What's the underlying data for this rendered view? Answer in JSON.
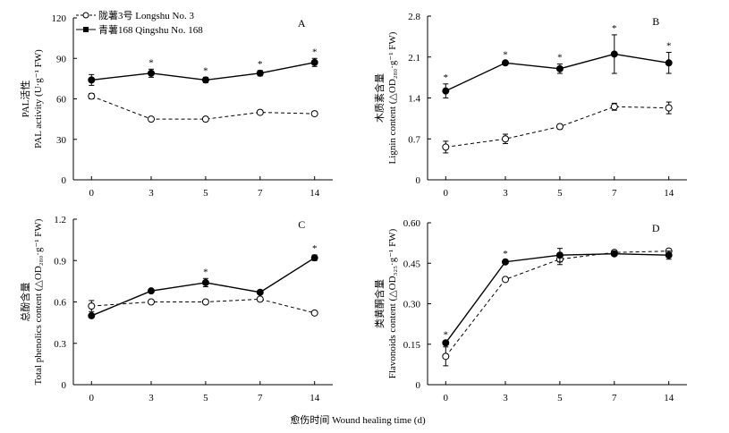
{
  "figure": {
    "x_axis_title": "愈伤时间 Wound healing time (d)",
    "legend": [
      {
        "label": "陇薯3号 Longshu No. 3",
        "style": "dashed-open"
      },
      {
        "label": "青薯168 Qingshu No. 168",
        "style": "solid-filled"
      }
    ]
  },
  "chart_data": [
    {
      "type": "line",
      "panel": "A",
      "categories": [
        "0",
        "3",
        "5",
        "7",
        "14"
      ],
      "ylabel_zh": "PAL活性",
      "ylabel_en": "PAL activity (U·g⁻¹ FW)",
      "ylim": [
        0,
        120
      ],
      "yticks": [
        "0",
        "30",
        "60",
        "90",
        "120"
      ],
      "series": [
        {
          "name": "陇薯3号 Longshu No. 3",
          "values": [
            62,
            45,
            45,
            50,
            49
          ],
          "errors": [
            2,
            1.5,
            1.5,
            1.5,
            1.5
          ]
        },
        {
          "name": "青薯168 Qingshu No. 168",
          "values": [
            74,
            79,
            74,
            79,
            87
          ],
          "errors": [
            4,
            3,
            2,
            2,
            3
          ]
        }
      ],
      "significance": [
        "",
        "*",
        "*",
        "*",
        "*"
      ]
    },
    {
      "type": "line",
      "panel": "B",
      "categories": [
        "0",
        "3",
        "5",
        "7",
        "14"
      ],
      "ylabel_zh": "木质素含量",
      "ylabel_en": "Lignin content (△OD₂₈₀·g⁻¹ FW)",
      "ylim": [
        0,
        2.8
      ],
      "yticks": [
        "0",
        "0.7",
        "1.4",
        "2.1",
        "2.8"
      ],
      "series": [
        {
          "name": "陇薯3号 Longshu No. 3",
          "values": [
            0.56,
            0.7,
            0.91,
            1.25,
            1.23
          ],
          "errors": [
            0.1,
            0.08,
            0.04,
            0.06,
            0.1
          ]
        },
        {
          "name": "青薯168 Qingshu No. 168",
          "values": [
            1.52,
            2.0,
            1.9,
            2.15,
            2.0
          ],
          "errors": [
            0.12,
            0.03,
            0.08,
            0.33,
            0.18
          ]
        }
      ],
      "significance": [
        "*",
        "*",
        "*",
        "*",
        "*"
      ]
    },
    {
      "type": "line",
      "panel": "C",
      "categories": [
        "0",
        "3",
        "5",
        "7",
        "14"
      ],
      "ylabel_zh": "总酚含量",
      "ylabel_en": "Total phenolics content (△OD₂₈₀·g⁻¹ FW)",
      "ylim": [
        0,
        1.2
      ],
      "yticks": [
        "0",
        "0.3",
        "0.6",
        "0.9",
        "1.2"
      ],
      "series": [
        {
          "name": "陇薯3号 Longshu No. 3",
          "values": [
            0.57,
            0.6,
            0.6,
            0.62,
            0.52
          ],
          "errors": [
            0.04,
            0.01,
            0.01,
            0.015,
            0.01
          ]
        },
        {
          "name": "青薯168 Qingshu No. 168",
          "values": [
            0.5,
            0.68,
            0.74,
            0.67,
            0.92
          ],
          "errors": [
            0.01,
            0.01,
            0.03,
            0.01,
            0.02
          ]
        }
      ],
      "significance": [
        "",
        "",
        "*",
        "",
        "*"
      ]
    },
    {
      "type": "line",
      "panel": "D",
      "categories": [
        "0",
        "3",
        "5",
        "7",
        "14"
      ],
      "ylabel_zh": "类黄酮含量",
      "ylabel_en": "Flavonoids content (△OD₃₂₅·g⁻¹ FW)",
      "ylim": [
        0,
        0.6
      ],
      "yticks": [
        "0",
        "0.15",
        "0.30",
        "0.45",
        "0.60"
      ],
      "series": [
        {
          "name": "陇薯3号 Longshu No. 3",
          "values": [
            0.105,
            0.39,
            0.465,
            0.49,
            0.495
          ],
          "errors": [
            0.035,
            0.005,
            0.02,
            0.008,
            0.008
          ]
        },
        {
          "name": "青薯168 Qingshu No. 168",
          "values": [
            0.155,
            0.455,
            0.48,
            0.485,
            0.48
          ],
          "errors": [
            0.005,
            0.005,
            0.025,
            0.005,
            0.015
          ]
        }
      ],
      "significance": [
        "*",
        "*",
        "",
        "",
        ""
      ]
    }
  ]
}
